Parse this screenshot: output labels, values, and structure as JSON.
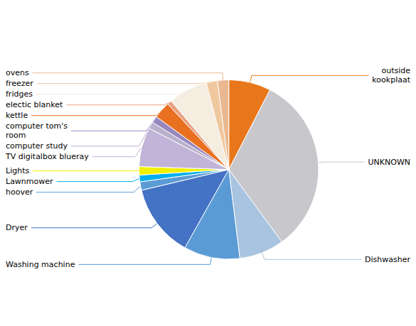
{
  "chart_data": {
    "type": "pie",
    "categories": [
      "outside\nkookplaat",
      "UNKNOWN",
      "Dishwasher",
      "Washing machine",
      "Dryer",
      "hoover",
      "Lawnmower",
      "Lights",
      "TV digitalbox blueray",
      "computer study",
      "computer tom's\nroom",
      "kettle",
      "electic blanket",
      "fridges",
      "freezer",
      "ovens"
    ],
    "values": [
      7.5,
      32,
      8,
      10,
      13,
      1.5,
      1.2,
      1.5,
      7,
      1.2,
      1.2,
      3,
      0.8,
      7,
      2,
      2
    ],
    "colors": [
      "#E8761A",
      "#C8C8CC",
      "#A8C4E0",
      "#5B9BD5",
      "#4472C4",
      "#5B9BD5",
      "#00AEEF",
      "#F0F000",
      "#C0B4D8",
      "#B8B0CC",
      "#9988C0",
      "#E87020",
      "#E8A080",
      "#F5EDE0",
      "#F0C8A0",
      "#EAB890"
    ]
  }
}
